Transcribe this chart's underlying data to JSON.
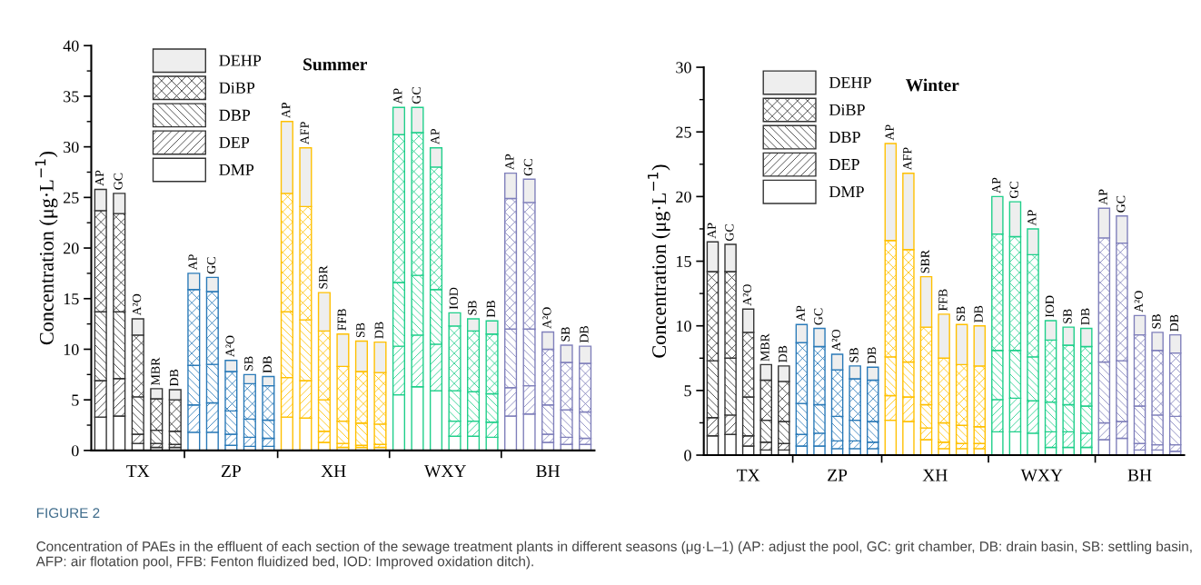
{
  "chart_data": [
    {
      "type": "bar",
      "stacked": true,
      "title": "Summer",
      "ylabel": "Concentration (μg·L$^{−1}$)",
      "legend": "top left",
      "categories": [
        "AP",
        "GC",
        "A²O",
        "MBR",
        "DB",
        "AP",
        "GC",
        "A²O",
        "SB",
        "DB",
        "AP",
        "AFP",
        "SBR",
        "FFB",
        "SB",
        "DB",
        "AP",
        "GC",
        "AP",
        "IOD",
        "SB",
        "DB",
        "AP",
        "GC",
        "A²O",
        "SB",
        "DB"
      ],
      "ylim": [
        0,
        40
      ],
      "yticks": [
        0,
        5,
        10,
        15,
        20,
        25,
        30,
        35,
        40
      ],
      "annotations": [
        "TX",
        "ZP",
        "XH",
        "WXY",
        "BH",
        "FIGURE 2",
        "Concentration of PAEs in the effluent of each section of the sewage treatment plants in different seasons (μg·L–1) (AP: adjust the pool, GC: grit chamber, DB: drain basin, SB: settling basin, AFP: air flotation pool, FFB: Fenton fluidized bed, IOD: Improved oxidation ditch)."
      ],
      "series": [
        {
          "name": "DMP",
          "color": "#ffffff",
          "colors": [
            "#333333",
            "#333333",
            "#333333",
            "#333333",
            "#333333",
            "#2a7ab8",
            "#2a7ab8",
            "#2a7ab8",
            "#2a7ab8",
            "#2a7ab8",
            "#ffc000",
            "#ffc000",
            "#ffc000",
            "#ffc000",
            "#ffc000",
            "#ffc000",
            "#1fcf8a",
            "#1fcf8a",
            "#1fcf8a",
            "#1fcf8a",
            "#1fcf8a",
            "#1fcf8a",
            "#8080bb",
            "#8080bb",
            "#8080bb",
            "#8080bb",
            "#8080bb"
          ],
          "values": [
            3.3,
            3.4,
            0.7,
            0.3,
            0.3,
            1.8,
            1.8,
            0.5,
            0.4,
            0.4,
            3.3,
            3.2,
            0.8,
            0.3,
            0.3,
            0.3,
            5.5,
            6.3,
            5.9,
            1.4,
            1.4,
            1.3,
            3.4,
            3.6,
            0.8,
            0.6,
            0.6
          ]
        },
        {
          "name": "DEP",
          "color": "#ffffff",
          "colors": [
            "#333333",
            "#333333",
            "#333333",
            "#333333",
            "#333333",
            "#2a7ab8",
            "#2a7ab8",
            "#2a7ab8",
            "#2a7ab8",
            "#2a7ab8",
            "#ffc000",
            "#ffc000",
            "#ffc000",
            "#ffc000",
            "#ffc000",
            "#ffc000",
            "#1fcf8a",
            "#1fcf8a",
            "#1fcf8a",
            "#1fcf8a",
            "#1fcf8a",
            "#1fcf8a",
            "#8080bb",
            "#8080bb",
            "#8080bb",
            "#8080bb",
            "#8080bb"
          ],
          "values": [
            3.6,
            3.7,
            0.9,
            0.4,
            0.3,
            2.7,
            2.9,
            1.1,
            0.9,
            0.8,
            3.9,
            3.7,
            1.1,
            0.4,
            0.2,
            0.3,
            4.8,
            5.1,
            4.6,
            1.5,
            1.5,
            1.5,
            2.8,
            2.8,
            0.8,
            0.7,
            0.6
          ]
        },
        {
          "name": "DBP",
          "color": "#ffffff",
          "colors": [
            "#333333",
            "#333333",
            "#333333",
            "#333333",
            "#333333",
            "#2a7ab8",
            "#2a7ab8",
            "#2a7ab8",
            "#2a7ab8",
            "#2a7ab8",
            "#ffc000",
            "#ffc000",
            "#ffc000",
            "#ffc000",
            "#ffc000",
            "#ffc000",
            "#1fcf8a",
            "#1fcf8a",
            "#1fcf8a",
            "#1fcf8a",
            "#1fcf8a",
            "#1fcf8a",
            "#8080bb",
            "#8080bb",
            "#8080bb",
            "#8080bb",
            "#8080bb"
          ],
          "values": [
            6.8,
            6.6,
            3.7,
            1.3,
            1.3,
            3.9,
            3.8,
            2.3,
            1.8,
            1.8,
            6.5,
            6.0,
            3.1,
            2.2,
            2.2,
            2.0,
            6.3,
            5.9,
            5.4,
            3.0,
            2.9,
            2.8,
            5.8,
            5.6,
            2.9,
            2.7,
            2.6
          ]
        },
        {
          "name": "DiBP",
          "color": "#ffffff",
          "colors": [
            "#333333",
            "#333333",
            "#333333",
            "#333333",
            "#333333",
            "#2a7ab8",
            "#2a7ab8",
            "#2a7ab8",
            "#2a7ab8",
            "#2a7ab8",
            "#ffc000",
            "#ffc000",
            "#ffc000",
            "#ffc000",
            "#ffc000",
            "#ffc000",
            "#1fcf8a",
            "#1fcf8a",
            "#1fcf8a",
            "#1fcf8a",
            "#1fcf8a",
            "#1fcf8a",
            "#8080bb",
            "#8080bb",
            "#8080bb",
            "#8080bb",
            "#8080bb"
          ],
          "values": [
            10.0,
            9.7,
            6.1,
            3.1,
            3.1,
            7.5,
            7.2,
            3.9,
            3.5,
            3.4,
            11.7,
            11.2,
            6.8,
            5.4,
            5.1,
            5.1,
            14.6,
            14.1,
            12.1,
            6.4,
            6.0,
            5.9,
            12.9,
            12.5,
            5.5,
            4.7,
            4.8
          ]
        },
        {
          "name": "DEHP",
          "color": "#eeeeee",
          "colors": [
            "#333333",
            "#333333",
            "#333333",
            "#333333",
            "#333333",
            "#2a7ab8",
            "#2a7ab8",
            "#2a7ab8",
            "#2a7ab8",
            "#2a7ab8",
            "#ffc000",
            "#ffc000",
            "#ffc000",
            "#ffc000",
            "#ffc000",
            "#ffc000",
            "#1fcf8a",
            "#1fcf8a",
            "#1fcf8a",
            "#1fcf8a",
            "#1fcf8a",
            "#1fcf8a",
            "#8080bb",
            "#8080bb",
            "#8080bb",
            "#8080bb",
            "#8080bb"
          ],
          "values": [
            2.1,
            2.0,
            1.6,
            1.0,
            1.0,
            1.6,
            1.4,
            1.1,
            0.9,
            0.9,
            7.1,
            5.8,
            3.8,
            3.2,
            3.0,
            3.0,
            2.7,
            2.5,
            1.9,
            1.3,
            1.2,
            1.3,
            2.5,
            2.3,
            1.7,
            1.7,
            1.7
          ]
        }
      ]
    },
    {
      "type": "bar",
      "stacked": true,
      "title": "Winter",
      "ylabel": "Concentration (μg·L$^{−1}$)",
      "legend": "top left",
      "categories": [
        "AP",
        "GC",
        "A²O",
        "MBR",
        "DB",
        "AP",
        "GC",
        "A²O",
        "SB",
        "DB",
        "AP",
        "AFP",
        "SBR",
        "FFB",
        "SB",
        "DB",
        "AP",
        "GC",
        "AP",
        "IOD",
        "SB",
        "DB",
        "AP",
        "GC",
        "A²O",
        "SB",
        "DB"
      ],
      "ylim": [
        0,
        30
      ],
      "yticks": [
        0,
        5,
        10,
        15,
        20,
        25,
        30
      ],
      "annotations": [
        "TX",
        "ZP",
        "XH",
        "WXY",
        "BH"
      ],
      "series": [
        {
          "name": "DMP",
          "color": "#ffffff",
          "colors": [
            "#333333",
            "#333333",
            "#333333",
            "#333333",
            "#333333",
            "#2a7ab8",
            "#2a7ab8",
            "#2a7ab8",
            "#2a7ab8",
            "#2a7ab8",
            "#ffc000",
            "#ffc000",
            "#ffc000",
            "#ffc000",
            "#ffc000",
            "#ffc000",
            "#1fcf8a",
            "#1fcf8a",
            "#1fcf8a",
            "#1fcf8a",
            "#1fcf8a",
            "#1fcf8a",
            "#8080bb",
            "#8080bb",
            "#8080bb",
            "#8080bb",
            "#8080bb"
          ],
          "values": [
            1.5,
            1.6,
            0.7,
            0.4,
            0.4,
            0.7,
            0.7,
            0.5,
            0.5,
            0.5,
            2.7,
            2.6,
            1.2,
            0.5,
            0.5,
            0.5,
            1.8,
            1.8,
            1.7,
            0.6,
            0.6,
            0.6,
            1.2,
            1.3,
            0.4,
            0.4,
            0.3
          ]
        },
        {
          "name": "DEP",
          "color": "#ffffff",
          "colors": [
            "#333333",
            "#333333",
            "#333333",
            "#333333",
            "#333333",
            "#2a7ab8",
            "#2a7ab8",
            "#2a7ab8",
            "#2a7ab8",
            "#2a7ab8",
            "#ffc000",
            "#ffc000",
            "#ffc000",
            "#ffc000",
            "#ffc000",
            "#ffc000",
            "#1fcf8a",
            "#1fcf8a",
            "#1fcf8a",
            "#1fcf8a",
            "#1fcf8a",
            "#1fcf8a",
            "#8080bb",
            "#8080bb",
            "#8080bb",
            "#8080bb",
            "#8080bb"
          ],
          "values": [
            1.4,
            1.5,
            0.8,
            0.6,
            0.5,
            0.9,
            1.0,
            0.6,
            0.6,
            0.5,
            1.9,
            1.9,
            0.9,
            0.5,
            0.4,
            0.4,
            2.5,
            2.6,
            2.5,
            1.2,
            1.2,
            1.1,
            1.3,
            1.3,
            0.5,
            0.4,
            0.5
          ]
        },
        {
          "name": "DBP",
          "color": "#ffffff",
          "colors": [
            "#333333",
            "#333333",
            "#333333",
            "#333333",
            "#333333",
            "#2a7ab8",
            "#2a7ab8",
            "#2a7ab8",
            "#2a7ab8",
            "#2a7ab8",
            "#ffc000",
            "#ffc000",
            "#ffc000",
            "#ffc000",
            "#ffc000",
            "#ffc000",
            "#1fcf8a",
            "#1fcf8a",
            "#1fcf8a",
            "#1fcf8a",
            "#1fcf8a",
            "#1fcf8a",
            "#8080bb",
            "#8080bb",
            "#8080bb",
            "#8080bb",
            "#8080bb"
          ],
          "values": [
            4.4,
            4.4,
            3.0,
            1.7,
            1.7,
            2.4,
            2.2,
            1.9,
            1.6,
            1.6,
            3.0,
            2.7,
            1.8,
            1.5,
            1.4,
            1.3,
            3.8,
            3.7,
            3.4,
            2.3,
            2.1,
            2.1,
            4.7,
            4.7,
            2.9,
            2.3,
            2.2
          ]
        },
        {
          "name": "DiBP",
          "color": "#ffffff",
          "colors": [
            "#333333",
            "#333333",
            "#333333",
            "#333333",
            "#333333",
            "#2a7ab8",
            "#2a7ab8",
            "#2a7ab8",
            "#2a7ab8",
            "#2a7ab8",
            "#ffc000",
            "#ffc000",
            "#ffc000",
            "#ffc000",
            "#ffc000",
            "#ffc000",
            "#1fcf8a",
            "#1fcf8a",
            "#1fcf8a",
            "#1fcf8a",
            "#1fcf8a",
            "#1fcf8a",
            "#8080bb",
            "#8080bb",
            "#8080bb",
            "#8080bb",
            "#8080bb"
          ],
          "values": [
            6.9,
            6.7,
            5.0,
            3.1,
            3.1,
            4.7,
            4.5,
            3.6,
            3.2,
            3.2,
            9.0,
            8.7,
            6.0,
            5.0,
            4.7,
            4.7,
            9.0,
            8.8,
            7.9,
            4.8,
            4.6,
            4.6,
            9.6,
            9.1,
            5.5,
            5.0,
            4.9
          ]
        },
        {
          "name": "DEHP",
          "color": "#eeeeee",
          "colors": [
            "#333333",
            "#333333",
            "#333333",
            "#333333",
            "#333333",
            "#2a7ab8",
            "#2a7ab8",
            "#2a7ab8",
            "#2a7ab8",
            "#2a7ab8",
            "#ffc000",
            "#ffc000",
            "#ffc000",
            "#ffc000",
            "#ffc000",
            "#ffc000",
            "#1fcf8a",
            "#1fcf8a",
            "#1fcf8a",
            "#1fcf8a",
            "#1fcf8a",
            "#1fcf8a",
            "#8080bb",
            "#8080bb",
            "#8080bb",
            "#8080bb",
            "#8080bb"
          ],
          "values": [
            2.3,
            2.1,
            1.8,
            1.2,
            1.2,
            1.4,
            1.4,
            1.2,
            1.0,
            1.0,
            7.5,
            5.9,
            3.9,
            3.4,
            3.1,
            3.1,
            2.9,
            2.7,
            2.0,
            1.5,
            1.4,
            1.4,
            2.3,
            2.1,
            1.5,
            1.4,
            1.4
          ]
        }
      ]
    }
  ]
}
